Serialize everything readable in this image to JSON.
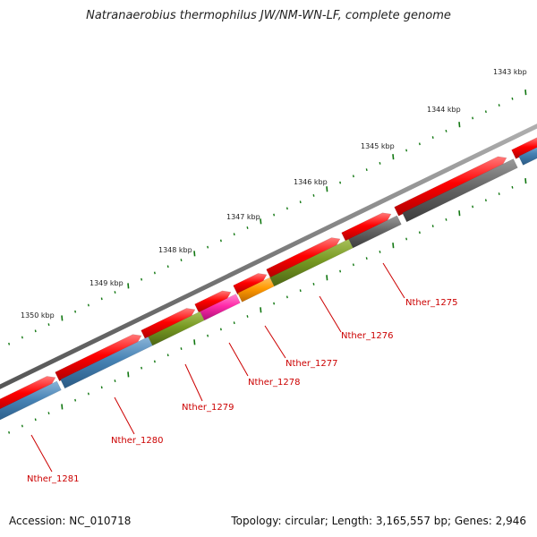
{
  "title": "Natranaerobius thermophilus JW/NM-WN-LF, complete genome",
  "footer": {
    "accession": "Accession: NC_010718",
    "summary": "Topology: circular; Length: 3,165,557 bp; Genes: 2,946"
  },
  "ruler_labels": [
    "1343 kbp",
    "1344 kbp",
    "1345 kbp",
    "1346 kbp",
    "1347 kbp",
    "1348 kbp",
    "1349 kbp",
    "1350 kbp"
  ],
  "gene_labels": [
    "Nther_1275",
    "Nther_1276",
    "Nther_1277",
    "Nther_1278",
    "Nther_1279",
    "Nther_1280",
    "Nther_1281"
  ],
  "colors": {
    "backbone": "#777777",
    "cds_red": "#ff0000",
    "tick_green": "#117711",
    "label_red": "#cc0000",
    "gray": "#666666",
    "olive": "#77992a",
    "orange": "#ff9900",
    "magenta": "#ff2aa8",
    "blue": "#4682b4"
  }
}
